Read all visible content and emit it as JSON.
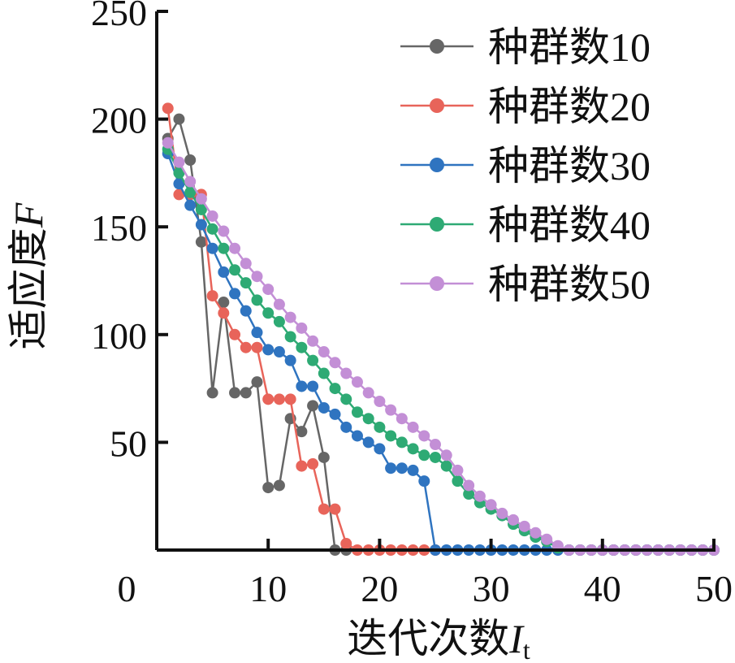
{
  "chart_data": {
    "type": "line",
    "ylabel": "适应度",
    "ylabel_var": "F",
    "xlabel": "迭代次数",
    "xlabel_var": "I",
    "xlabel_sub": "t",
    "x_ticks": [
      "0",
      "10",
      "20",
      "30",
      "40",
      "50"
    ],
    "y_ticks": [
      "50",
      "100",
      "150",
      "200",
      "250"
    ],
    "xlim": [
      0,
      50
    ],
    "ylim": [
      0,
      250
    ],
    "grid": false,
    "legend_position": "top-right",
    "series": [
      {
        "name": "种群数10",
        "color": "#666666",
        "x": [
          1,
          2,
          3,
          4,
          5,
          6,
          7,
          8,
          9,
          10,
          11,
          12,
          13,
          14,
          15,
          16,
          17
        ],
        "y": [
          191,
          200,
          181,
          143,
          73,
          115,
          73,
          73,
          78,
          29,
          30,
          61,
          55,
          67,
          43,
          0,
          0
        ]
      },
      {
        "name": "种群数20",
        "color": "#e8645a",
        "x": [
          1,
          2,
          3,
          4,
          5,
          6,
          7,
          8,
          9,
          10,
          11,
          12,
          13,
          14,
          15,
          16,
          17,
          18,
          19,
          20,
          21,
          22,
          23,
          24,
          25
        ],
        "y": [
          205,
          165,
          165,
          165,
          118,
          110,
          100,
          94,
          94,
          70,
          70,
          70,
          39,
          40,
          19,
          19,
          3,
          0,
          0,
          0,
          0,
          0,
          0,
          0,
          0
        ]
      },
      {
        "name": "种群数30",
        "color": "#2f74c0",
        "x": [
          1,
          2,
          3,
          4,
          5,
          6,
          7,
          8,
          9,
          10,
          11,
          12,
          13,
          14,
          15,
          16,
          17,
          18,
          19,
          20,
          21,
          22,
          23,
          24,
          25,
          26,
          27,
          28,
          29,
          30,
          31,
          32,
          33,
          34,
          35,
          36,
          37,
          38,
          39,
          40,
          41,
          42,
          43,
          44,
          45,
          46,
          47,
          48,
          49,
          50
        ],
        "y": [
          184,
          170,
          160,
          151,
          140,
          129,
          119,
          111,
          101,
          93,
          92,
          88,
          76,
          76,
          66,
          63,
          57,
          53,
          50,
          47,
          38,
          38,
          37,
          32,
          0,
          0,
          0,
          0,
          0,
          0,
          0,
          0,
          0,
          0,
          0,
          0,
          0,
          0,
          0,
          0,
          0,
          0,
          0,
          0,
          0,
          0,
          0,
          0,
          0,
          0
        ]
      },
      {
        "name": "种群数40",
        "color": "#2eaa74",
        "x": [
          1,
          2,
          3,
          4,
          5,
          6,
          7,
          8,
          9,
          10,
          11,
          12,
          13,
          14,
          15,
          16,
          17,
          18,
          19,
          20,
          21,
          22,
          23,
          24,
          25,
          26,
          27,
          28,
          29,
          30,
          31,
          32,
          33,
          34,
          35,
          36,
          37,
          38,
          39,
          40,
          41,
          42,
          43,
          44,
          45,
          46,
          47,
          48,
          49,
          50
        ],
        "y": [
          186,
          175,
          166,
          158,
          149,
          140,
          130,
          124,
          116,
          110,
          106,
          99,
          94,
          88,
          82,
          75,
          70,
          64,
          61,
          57,
          53,
          50,
          47,
          44,
          43,
          39,
          32,
          26,
          22,
          19,
          16,
          12,
          9,
          6,
          4,
          1,
          0,
          0,
          0,
          0,
          0,
          0,
          0,
          0,
          0,
          0,
          0,
          0,
          0,
          0
        ]
      },
      {
        "name": "种群数50",
        "color": "#c38fd6",
        "x": [
          1,
          2,
          3,
          4,
          5,
          6,
          7,
          8,
          9,
          10,
          11,
          12,
          13,
          14,
          15,
          16,
          17,
          18,
          19,
          20,
          21,
          22,
          23,
          24,
          25,
          26,
          27,
          28,
          29,
          30,
          31,
          32,
          33,
          34,
          35,
          36,
          37,
          38,
          39,
          40,
          41,
          42,
          43,
          44,
          45,
          46,
          47,
          48,
          49,
          50
        ],
        "y": [
          189,
          180,
          171,
          163,
          155,
          148,
          140,
          133,
          127,
          121,
          114,
          108,
          103,
          97,
          92,
          87,
          82,
          78,
          73,
          69,
          65,
          61,
          57,
          53,
          49,
          44,
          37,
          30,
          25,
          21,
          17,
          14,
          11,
          8,
          5,
          2,
          0,
          0,
          0,
          0,
          0,
          0,
          0,
          0,
          0,
          0,
          0,
          0,
          0,
          0
        ]
      }
    ]
  }
}
